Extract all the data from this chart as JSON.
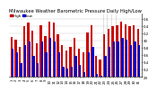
{
  "title": "Milwaukee Weather Barometric Pressure Daily High/Low",
  "bar_width": 0.45,
  "high_color": "#cc0000",
  "low_color": "#0000cc",
  "background_color": "#ffffff",
  "plot_bg_color": "#ffffff",
  "ylim_min": 29.0,
  "ylim_max": 30.75,
  "yticks": [
    29.0,
    29.2,
    29.4,
    29.6,
    29.8,
    30.0,
    30.2,
    30.4,
    30.6
  ],
  "ytick_labels": [
    "29",
    "9.2",
    "9.4",
    "9.6",
    "9.8",
    "30",
    "0.2",
    "0.4",
    "0.6"
  ],
  "days": [
    1,
    2,
    3,
    4,
    5,
    6,
    7,
    8,
    9,
    10,
    11,
    12,
    13,
    14,
    15,
    16,
    17,
    18,
    19,
    20,
    21,
    22,
    23,
    24,
    25,
    26,
    27,
    28,
    29,
    30,
    31
  ],
  "highs": [
    30.1,
    30.02,
    29.82,
    30.38,
    30.48,
    30.28,
    29.92,
    30.42,
    30.12,
    30.52,
    30.48,
    30.18,
    29.88,
    29.72,
    29.82,
    30.08,
    29.78,
    29.68,
    30.22,
    30.42,
    29.58,
    29.48,
    30.18,
    30.32,
    30.38,
    30.42,
    30.52,
    30.45,
    30.38,
    30.42,
    30.32
  ],
  "lows": [
    29.78,
    29.68,
    29.38,
    29.88,
    29.98,
    29.58,
    29.38,
    29.98,
    29.68,
    30.08,
    29.98,
    29.68,
    29.28,
    29.22,
    29.28,
    29.58,
    29.32,
    29.12,
    29.68,
    29.82,
    29.08,
    29.02,
    29.58,
    29.82,
    29.98,
    29.98,
    30.08,
    30.02,
    29.88,
    29.98,
    29.88
  ],
  "dotted_lines": [
    22.5,
    23.5,
    24.5,
    25.5
  ],
  "title_fontsize": 3.8,
  "tick_fontsize": 2.8,
  "legend_fontsize": 3.0
}
